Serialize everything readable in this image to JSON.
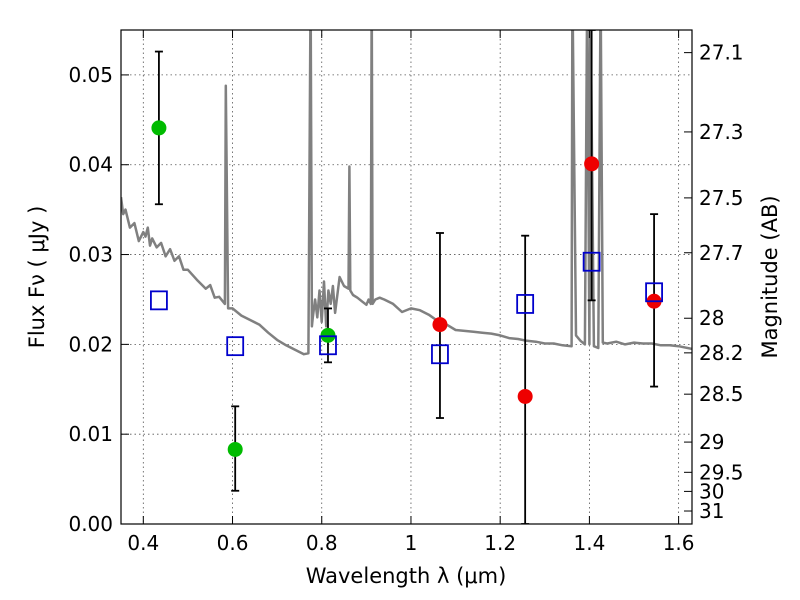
{
  "chart_data": {
    "type": "scatter",
    "xlabel": "Wavelength  λ (μm)",
    "ylabel": "Flux  Fν  ( μJy )",
    "y2label": "Magnitude (AB)",
    "xlim": [
      0.35,
      1.63
    ],
    "ylim": [
      0.0,
      0.055
    ],
    "grid": true,
    "x_ticks": [
      "0.4",
      "0.6",
      "0.8",
      "1",
      "1.2",
      "1.4",
      "1.6"
    ],
    "x_tick_values": [
      0.4,
      0.6,
      0.8,
      1.0,
      1.2,
      1.4,
      1.6
    ],
    "y_ticks": [
      "0.00",
      "0.01",
      "0.02",
      "0.03",
      "0.04",
      "0.05"
    ],
    "y_tick_values": [
      0.0,
      0.01,
      0.02,
      0.03,
      0.04,
      0.05
    ],
    "y2_ticks": [
      "27.1",
      "27.3",
      "27.5",
      "27.7",
      "28",
      "28.2",
      "28.5",
      "29",
      "29.5",
      "30",
      "31"
    ],
    "y2_tick_values": [
      27.1,
      27.3,
      27.5,
      27.7,
      28.0,
      28.2,
      28.5,
      29.0,
      29.5,
      30.0,
      31.0
    ],
    "colors": {
      "green": "#00bb00",
      "red": "#ee0000",
      "model": "#808080",
      "square": "#0000cc",
      "errorbar": "#000000",
      "grid": "#555555"
    },
    "series": [
      {
        "marker": "circle",
        "color": "green",
        "points": [
          {
            "x": 0.435,
            "y": 0.0441,
            "err_low": 0.0356,
            "err_high": 0.0526
          },
          {
            "x": 0.606,
            "y": 0.0083,
            "err_low": 0.0037,
            "err_high": 0.0131
          },
          {
            "x": 0.814,
            "y": 0.021,
            "err_low": 0.018,
            "err_high": 0.024
          }
        ]
      },
      {
        "marker": "circle",
        "color": "red",
        "points": [
          {
            "x": 1.065,
            "y": 0.0222,
            "err_low": 0.0118,
            "err_high": 0.0324
          },
          {
            "x": 1.256,
            "y": 0.0142,
            "err_low": 0.0,
            "err_high": 0.0321
          },
          {
            "x": 1.405,
            "y": 0.0401,
            "err_low": 0.0249,
            "err_high": 0.055
          },
          {
            "x": 1.545,
            "y": 0.0248,
            "err_low": 0.0153,
            "err_high": 0.0345
          }
        ]
      },
      {
        "marker": "square-open",
        "color": "square",
        "points": [
          {
            "x": 0.435,
            "y": 0.0249
          },
          {
            "x": 0.606,
            "y": 0.0198
          },
          {
            "x": 0.814,
            "y": 0.0199
          },
          {
            "x": 1.065,
            "y": 0.0189
          },
          {
            "x": 1.256,
            "y": 0.0245
          },
          {
            "x": 1.405,
            "y": 0.0292
          },
          {
            "x": 1.545,
            "y": 0.0258
          }
        ]
      }
    ],
    "model_spectrum": {
      "color": "model",
      "x": [
        0.35,
        0.355,
        0.36,
        0.37,
        0.38,
        0.39,
        0.4,
        0.405,
        0.41,
        0.415,
        0.42,
        0.43,
        0.44,
        0.45,
        0.46,
        0.47,
        0.48,
        0.49,
        0.5,
        0.52,
        0.54,
        0.55,
        0.56,
        0.57,
        0.583,
        0.585,
        0.59,
        0.6,
        0.62,
        0.64,
        0.66,
        0.68,
        0.7,
        0.72,
        0.74,
        0.76,
        0.77,
        0.775,
        0.778,
        0.78,
        0.785,
        0.79,
        0.795,
        0.8,
        0.805,
        0.81,
        0.815,
        0.82,
        0.825,
        0.83,
        0.84,
        0.85,
        0.86,
        0.862,
        0.864,
        0.87,
        0.88,
        0.89,
        0.9,
        0.905,
        0.91,
        0.912,
        0.914,
        0.92,
        0.93,
        0.94,
        0.96,
        0.98,
        1.0,
        1.02,
        1.04,
        1.06,
        1.08,
        1.1,
        1.12,
        1.14,
        1.16,
        1.18,
        1.2,
        1.22,
        1.24,
        1.26,
        1.28,
        1.3,
        1.32,
        1.34,
        1.36,
        1.362,
        1.37,
        1.38,
        1.39,
        1.395,
        1.4,
        1.402,
        1.41,
        1.42,
        1.425,
        1.43,
        1.44,
        1.46,
        1.48,
        1.5,
        1.52,
        1.54,
        1.56,
        1.58,
        1.6,
        1.63
      ],
      "y": [
        0.0364,
        0.0345,
        0.035,
        0.033,
        0.0335,
        0.0315,
        0.0325,
        0.032,
        0.033,
        0.031,
        0.0318,
        0.0308,
        0.0313,
        0.0298,
        0.0306,
        0.0293,
        0.0298,
        0.0283,
        0.0283,
        0.0272,
        0.0262,
        0.0266,
        0.0252,
        0.0253,
        0.0245,
        0.0488,
        0.024,
        0.024,
        0.0232,
        0.0227,
        0.0222,
        0.0213,
        0.0205,
        0.0199,
        0.0194,
        0.0189,
        0.019,
        0.06,
        0.022,
        0.023,
        0.025,
        0.023,
        0.026,
        0.0225,
        0.027,
        0.022,
        0.026,
        0.0245,
        0.0265,
        0.0235,
        0.0275,
        0.0265,
        0.0262,
        0.0398,
        0.026,
        0.0255,
        0.0252,
        0.0248,
        0.0244,
        0.025,
        0.0245,
        0.06,
        0.0245,
        0.025,
        0.0252,
        0.025,
        0.0245,
        0.0236,
        0.024,
        0.0238,
        0.0233,
        0.0226,
        0.0222,
        0.0216,
        0.0215,
        0.0214,
        0.0213,
        0.0212,
        0.021,
        0.0207,
        0.0206,
        0.0204,
        0.0203,
        0.0201,
        0.0201,
        0.0199,
        0.0198,
        0.06,
        0.021,
        0.0204,
        0.02,
        0.06,
        0.02,
        0.06,
        0.0198,
        0.0196,
        0.06,
        0.0202,
        0.0201,
        0.0203,
        0.02,
        0.0202,
        0.0201,
        0.0201,
        0.0199,
        0.0199,
        0.0198,
        0.0195
      ]
    }
  }
}
